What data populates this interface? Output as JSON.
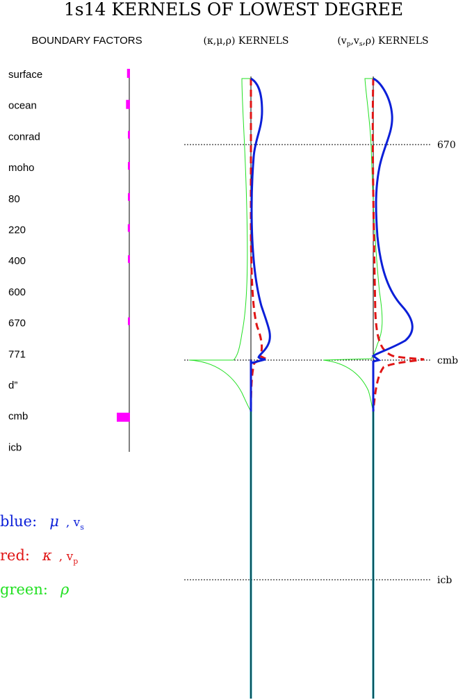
{
  "title": "1s14 KERNELS OF LOWEST DEGREE",
  "boundary_panel": {
    "title": "BOUNDARY FACTORS",
    "labels": [
      "surface",
      "ocean",
      "conrad",
      "moho",
      "80",
      "220",
      "400",
      "600",
      "670",
      "771",
      "d”",
      "cmb",
      "icb"
    ],
    "factors": [
      0.18,
      0.26,
      0.04,
      0.04,
      0.06,
      0.12,
      0.08,
      0.0,
      0.1,
      0.0,
      0.0,
      1.0,
      0.0
    ]
  },
  "panel_titles": {
    "left": "(κ,μ,ρ) KERNELS",
    "right_prefix": "(v",
    "right_sub_p": "p",
    "right_comma1": ",v",
    "right_sub_s": "s",
    "right_suffix": ",ρ) KERNELS"
  },
  "depth_markers": [
    "670",
    "cmb",
    "icb"
  ],
  "legend": {
    "blue_label": "blue:",
    "blue_mu": "μ",
    "blue_v": ", v",
    "blue_sub": "s",
    "red_label": "red:",
    "red_kappa": "κ",
    "red_v": ", v",
    "red_sub": "p",
    "green_label": "green:",
    "green_rho": "ρ"
  },
  "colors": {
    "blue": "#0b1fd8",
    "red": "#e01515",
    "green": "#22e022",
    "magenta": "#ff00ff",
    "axis_cyan": "#12a0b4"
  }
}
